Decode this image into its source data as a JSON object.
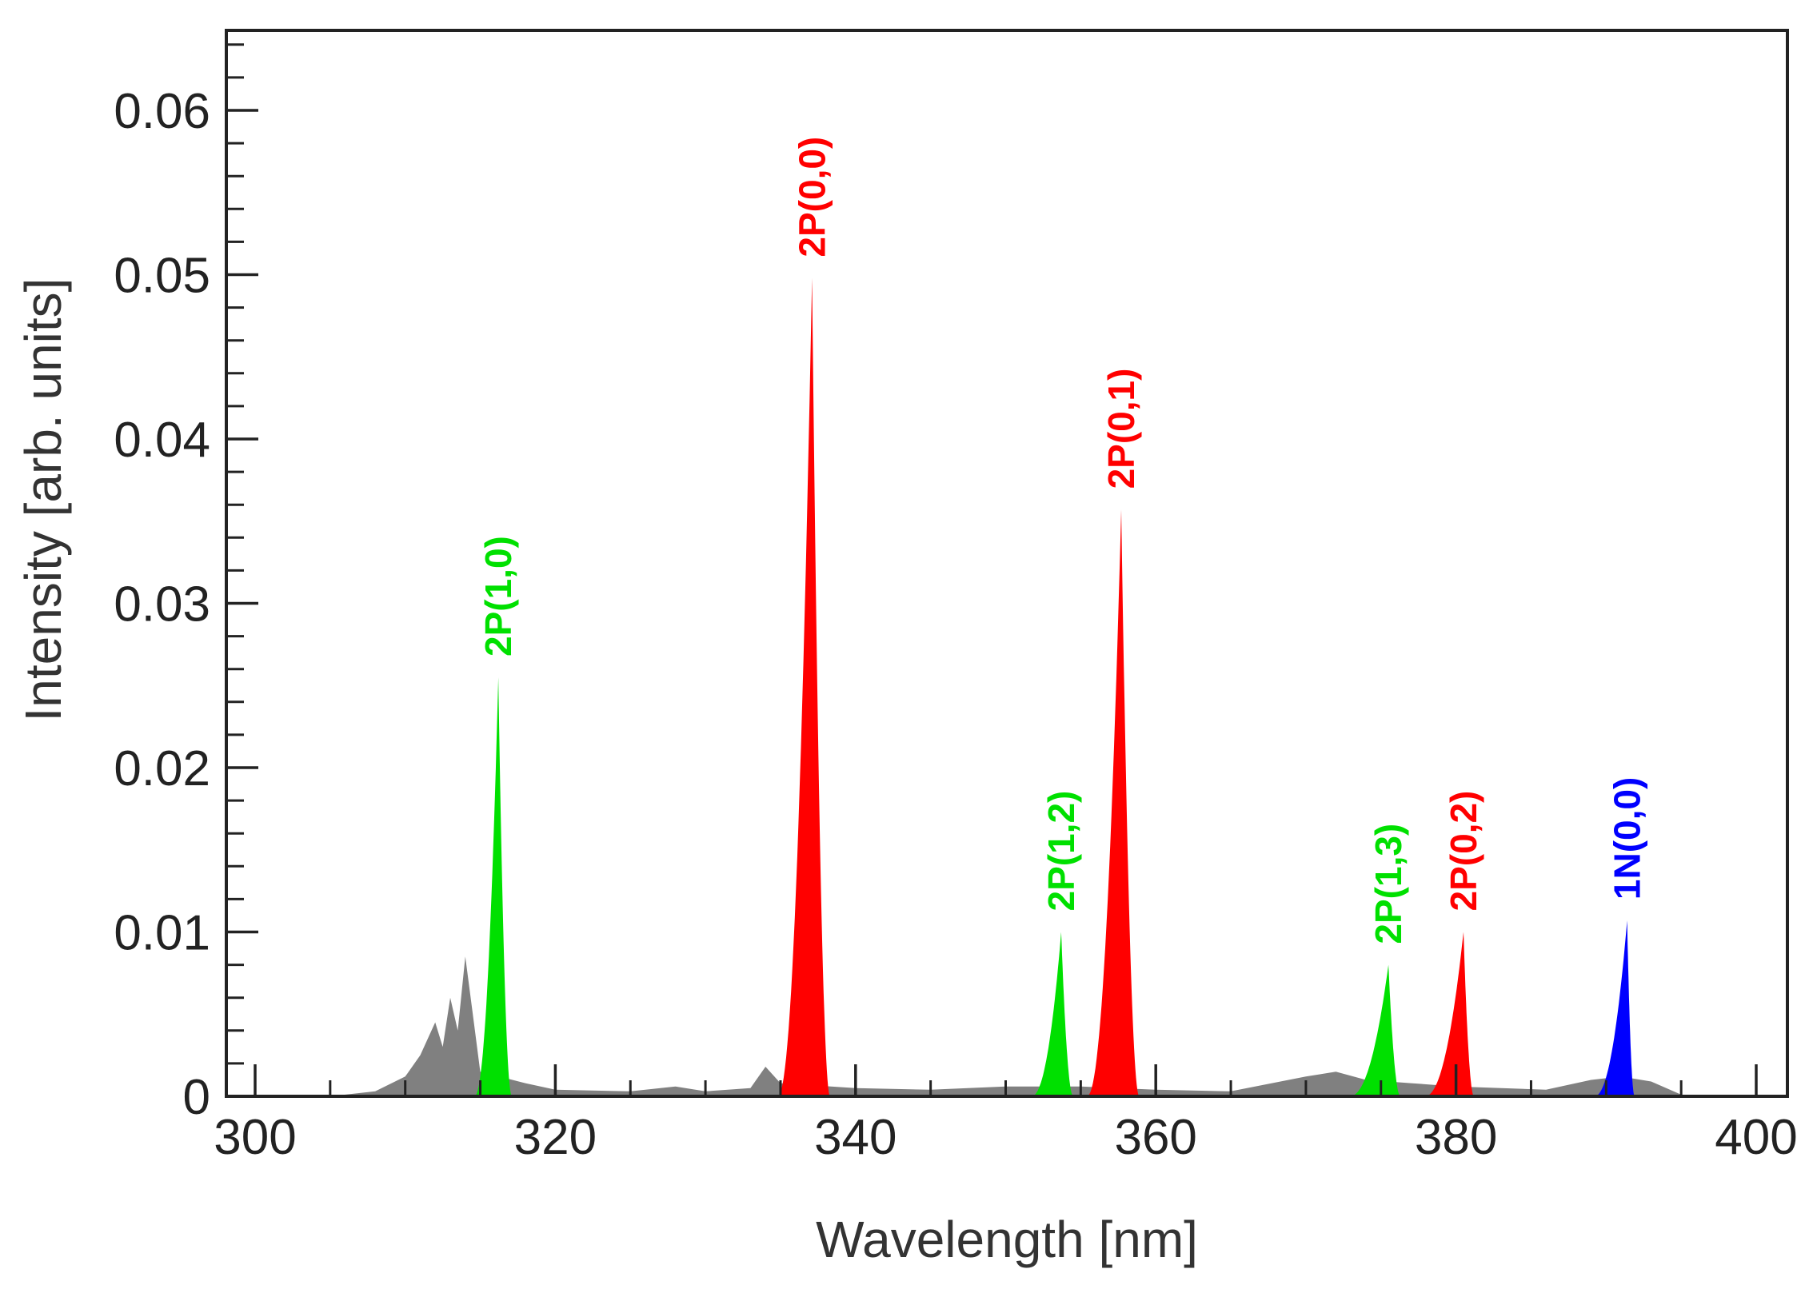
{
  "chart_data": {
    "type": "area",
    "title": "",
    "xlabel": "Wavelength [nm]",
    "ylabel": "Intensity [arb. units]",
    "xlim": [
      300,
      400
    ],
    "ylim": [
      0,
      0.065
    ],
    "grid": false,
    "x_ticks": [
      300,
      320,
      340,
      360,
      380,
      400
    ],
    "x_tick_labels": [
      "300",
      "320",
      "340",
      "360",
      "380",
      "400"
    ],
    "y_ticks": [
      0,
      0.01,
      0.02,
      0.03,
      0.04,
      0.05,
      0.06
    ],
    "y_tick_labels": [
      "0",
      "0.01",
      "0.02",
      "0.03",
      "0.04",
      "0.05",
      "0.06"
    ],
    "colors": {
      "background": "#808080",
      "2P_v1": "#00e000",
      "2P_v0": "#ff0000",
      "1N": "#0000ff"
    },
    "background_spectrum": {
      "x": [
        305,
        308,
        310,
        311,
        312,
        312.5,
        313,
        313.5,
        314,
        314.5,
        315,
        318,
        320,
        325,
        328,
        330,
        333,
        334,
        335,
        340,
        345,
        350,
        355,
        360,
        365,
        370,
        372,
        374,
        377,
        380,
        383,
        386,
        389,
        391,
        393,
        395
      ],
      "values": [
        0,
        0.0003,
        0.0012,
        0.0025,
        0.0045,
        0.003,
        0.006,
        0.004,
        0.0085,
        0.005,
        0.0015,
        0.0008,
        0.0004,
        0.0003,
        0.0006,
        0.0003,
        0.0005,
        0.0018,
        0.0008,
        0.0005,
        0.0004,
        0.0006,
        0.0006,
        0.0004,
        0.0003,
        0.0012,
        0.0015,
        0.001,
        0.0008,
        0.0006,
        0.0005,
        0.0004,
        0.001,
        0.0012,
        0.0009,
        0.0001
      ]
    },
    "series": [
      {
        "name": "2P(1,0)",
        "band": "2P_v1",
        "peak_x": 316.2,
        "peak_y": 0.0255,
        "left_width": 1.6,
        "right_width": 0.9
      },
      {
        "name": "2P(0,0)",
        "band": "2P_v0",
        "peak_x": 337.1,
        "peak_y": 0.0498,
        "left_width": 2.3,
        "right_width": 1.2
      },
      {
        "name": "2P(1,2)",
        "band": "2P_v1",
        "peak_x": 353.7,
        "peak_y": 0.01,
        "left_width": 2.0,
        "right_width": 0.8
      },
      {
        "name": "2P(0,1)",
        "band": "2P_v0",
        "peak_x": 357.7,
        "peak_y": 0.0357,
        "left_width": 2.3,
        "right_width": 1.2
      },
      {
        "name": "2P(1,3)",
        "band": "2P_v1",
        "peak_x": 375.5,
        "peak_y": 0.008,
        "left_width": 2.6,
        "right_width": 0.8
      },
      {
        "name": "2P(0,2)",
        "band": "2P_v0",
        "peak_x": 380.5,
        "peak_y": 0.01,
        "left_width": 2.6,
        "right_width": 0.7
      },
      {
        "name": "1N(0,0)",
        "band": "1N",
        "peak_x": 391.4,
        "peak_y": 0.0107,
        "left_width": 2.2,
        "right_width": 0.5
      }
    ]
  }
}
